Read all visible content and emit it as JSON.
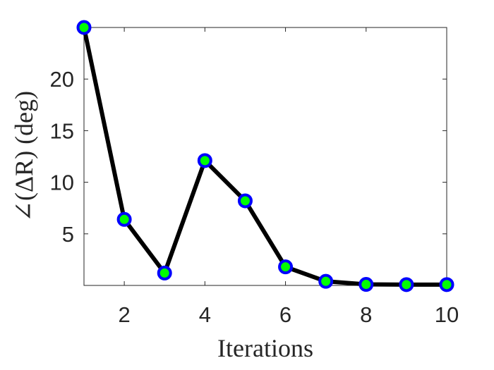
{
  "chart_data": {
    "type": "line",
    "xlabel": "Iterations",
    "ylabel": "∠(ΔR) (deg)",
    "x": [
      1,
      2,
      3,
      4,
      5,
      6,
      7,
      8,
      9,
      10
    ],
    "values": [
      25.0,
      6.4,
      1.2,
      12.1,
      8.2,
      1.8,
      0.4,
      0.1,
      0.08,
      0.08
    ],
    "color": "#000000",
    "marker_edge_color": "#0000ff",
    "marker_face_color": "#00ff00",
    "xlim": [
      1,
      10
    ],
    "xticks": [
      2,
      4,
      6,
      8,
      10
    ],
    "ylim": [
      0,
      25
    ],
    "yticks": [
      5,
      10,
      15,
      20
    ],
    "grid": false
  }
}
